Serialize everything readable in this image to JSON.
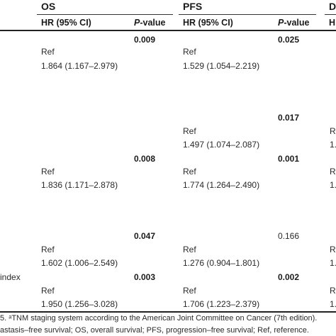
{
  "headers": {
    "os": "OS",
    "pfs": "PFS",
    "dm": "D",
    "hr_ci": "HR (95% CI)",
    "p_pre": "P",
    "p_post": "-value",
    "h_cut": "H"
  },
  "rows": {
    "r1": {
      "os_p": "0.009",
      "os_ref": "Ref",
      "os_hr": "1.864 (1.167–2.979)",
      "pfs_p": "0.025",
      "pfs_ref": "Ref",
      "pfs_hr": "1.529 (1.054–2.219)"
    },
    "r2": {
      "pfs_p": "0.017",
      "pfs_ref": "Ref",
      "pfs_hr": "1.497 (1.074–2.087)",
      "dm_ref": "R",
      "dm_hr": "1."
    },
    "r3": {
      "os_p": "0.008",
      "os_ref": "Ref",
      "os_hr": "1.836 (1.171–2.878)",
      "pfs_p": "0.001",
      "pfs_ref": "Ref",
      "pfs_hr": "1.774 (1.264–2.490)",
      "dm_ref": "R",
      "dm_hr": "1."
    },
    "r4": {
      "os_p": "0.047",
      "os_ref": "Ref",
      "os_hr": "1.602 (1.006–2.549)",
      "pfs_p": "0.166",
      "pfs_ref": "Ref",
      "pfs_hr": "1.276 (0.904–1.801)",
      "dm_ref": "R",
      "dm_hr": "1."
    },
    "r5": {
      "label": "index",
      "os_p": "0.003",
      "os_ref": "Ref",
      "os_hr": "1.950 (1.256–3.028)",
      "pfs_p": "0.002",
      "pfs_ref": "Ref",
      "pfs_hr": "1.706 (1.223–2.379)",
      "dm_ref": "R",
      "dm_hr": "1."
    }
  },
  "footnotes": {
    "line1": "5. ᵃTNM staging system according to the American Joint Committee on Cancer (7th edition).",
    "line2": "astasis–free survival; OS, overall survival; PFS, progression–free survival; Ref, reference."
  }
}
